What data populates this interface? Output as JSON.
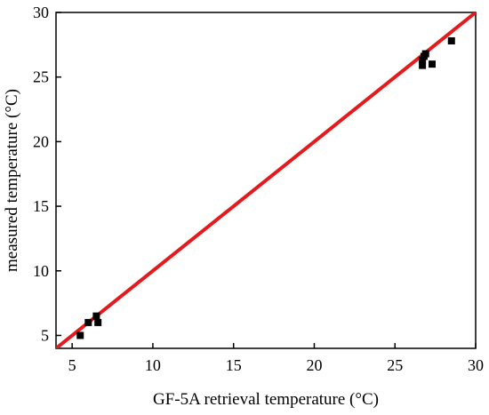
{
  "chart_data": {
    "type": "scatter",
    "title": "",
    "xlabel": "GF-5A retrieval temperature (°C)",
    "ylabel": "measured temperature (°C)",
    "xlim": [
      4,
      30
    ],
    "ylim": [
      4,
      30
    ],
    "xticks": [
      5,
      10,
      15,
      20,
      25,
      30
    ],
    "yticks": [
      5,
      10,
      15,
      20,
      25,
      30
    ],
    "grid": false,
    "legend": "none",
    "series": [
      {
        "marker": "square",
        "color": "#000000",
        "points": [
          {
            "x": 5.5,
            "y": 5.0
          },
          {
            "x": 6.0,
            "y": 6.0
          },
          {
            "x": 6.5,
            "y": 6.5
          },
          {
            "x": 6.6,
            "y": 6.0
          },
          {
            "x": 26.7,
            "y": 25.9
          },
          {
            "x": 26.7,
            "y": 26.3
          },
          {
            "x": 26.8,
            "y": 26.6
          },
          {
            "x": 26.9,
            "y": 26.8
          },
          {
            "x": 27.3,
            "y": 26.0
          },
          {
            "x": 28.5,
            "y": 27.8
          }
        ]
      }
    ],
    "reference_line": {
      "color": "#e41a1c",
      "from": {
        "x": 4,
        "y": 4
      },
      "to": {
        "x": 30,
        "y": 30
      }
    }
  }
}
